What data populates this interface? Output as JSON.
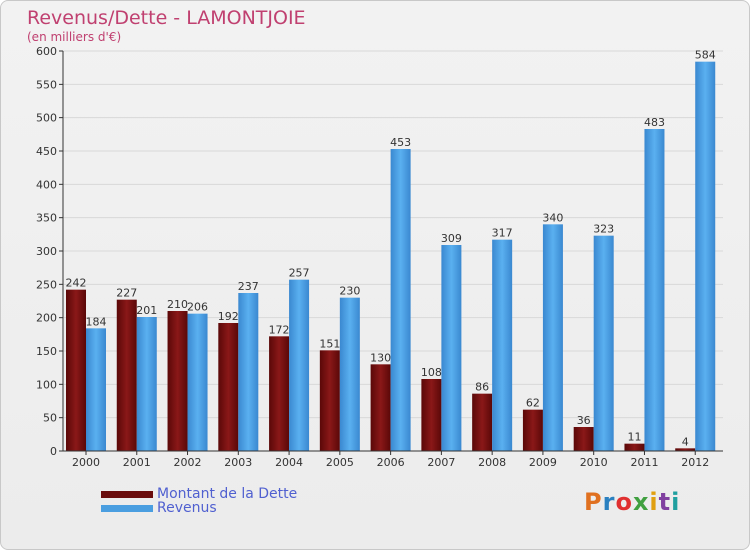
{
  "chart_data": {
    "type": "bar",
    "title": "Revenus/Dette - LAMONTJOIE",
    "subtitle": "(en milliers d'€)",
    "categories": [
      "2000",
      "2001",
      "2002",
      "2003",
      "2004",
      "2005",
      "2006",
      "2007",
      "2008",
      "2009",
      "2010",
      "2011",
      "2012"
    ],
    "series": [
      {
        "name": "Montant de la Dette",
        "color": "#7a1010",
        "values": [
          242,
          227,
          210,
          192,
          172,
          151,
          130,
          108,
          86,
          62,
          36,
          11,
          4
        ]
      },
      {
        "name": "Revenus",
        "color": "#4a9ee0",
        "values": [
          184,
          201,
          206,
          237,
          257,
          230,
          453,
          309,
          317,
          340,
          323,
          483,
          584
        ]
      }
    ],
    "ylim": [
      0,
      600
    ],
    "yticks": [
      0,
      50,
      100,
      150,
      200,
      250,
      300,
      350,
      400,
      450,
      500,
      550,
      600
    ],
    "grid": true,
    "legend_position": "bottom-left"
  },
  "branding": {
    "logo_text": "Proxiti",
    "logo_colors": [
      "#e07020",
      "#2a80c0",
      "#e03030",
      "#40a040",
      "#e0a010",
      "#8040a0",
      "#20a0a0"
    ]
  }
}
